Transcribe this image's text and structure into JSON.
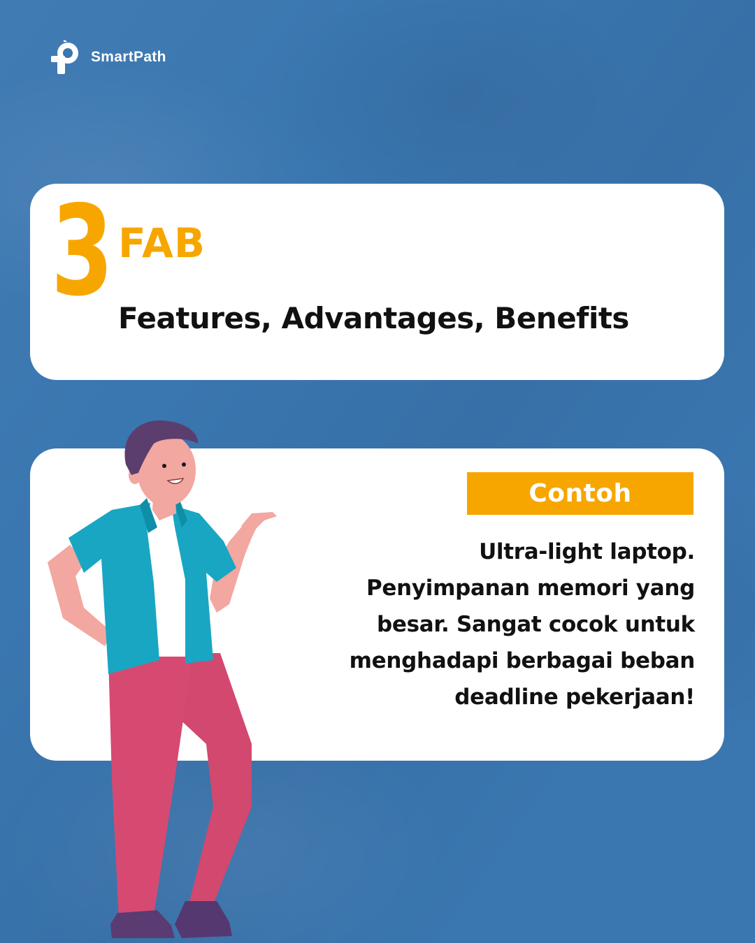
{
  "brand": {
    "name": "SmartPath",
    "logo_icon": "smartpath-logo-icon",
    "color": "#ffffff"
  },
  "header_card": {
    "step_number": "3",
    "title": "FAB",
    "subtitle": "Features, Advantages, Benefits"
  },
  "example_card": {
    "badge_label": "Contoh",
    "lines": [
      "Ultra-light laptop.",
      "Penyimpanan memori yang",
      "besar. Sangat cocok untuk",
      "menghadapi berbagai beban",
      "deadline pekerjaan!"
    ]
  },
  "illustration": {
    "icon": "presenting-man-illustration"
  },
  "colors": {
    "background": "#3a76b0",
    "accent": "#f7a600",
    "card": "#ffffff",
    "text": "#111111"
  }
}
